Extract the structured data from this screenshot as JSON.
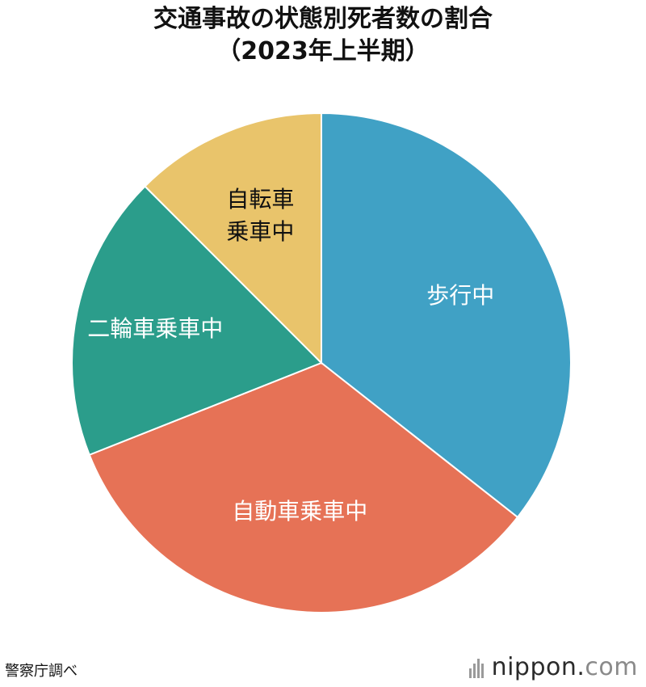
{
  "title": {
    "line1": "交通事故の状態別死者数の割合",
    "line2": "（2023年上半期）"
  },
  "source": "警察庁調べ",
  "logo": {
    "name": "nippon",
    "dot": ".",
    "tld": "com"
  },
  "chart_data": {
    "type": "pie",
    "title": "交通事故の状態別死者数の割合（2023年上半期）",
    "start": "12 o'clock",
    "direction": "clockwise",
    "slices": [
      {
        "label": "歩行中",
        "lines": [
          "歩行中"
        ],
        "value": 35.6,
        "color": "#40a1c5",
        "text_color": "#ffffff"
      },
      {
        "label": "自動車乗車中",
        "lines": [
          "自動車乗車中"
        ],
        "value": 33.4,
        "color": "#e67256",
        "text_color": "#ffffff"
      },
      {
        "label": "二輪車乗車中",
        "lines": [
          "二輪車乗車中"
        ],
        "value": 18.5,
        "color": "#2b9d8b",
        "text_color": "#ffffff"
      },
      {
        "label": "自転車乗車中",
        "lines": [
          "自転車",
          "乗車中"
        ],
        "value": 12.5,
        "color": "#e9c46b",
        "text_color": "#111111"
      }
    ]
  }
}
